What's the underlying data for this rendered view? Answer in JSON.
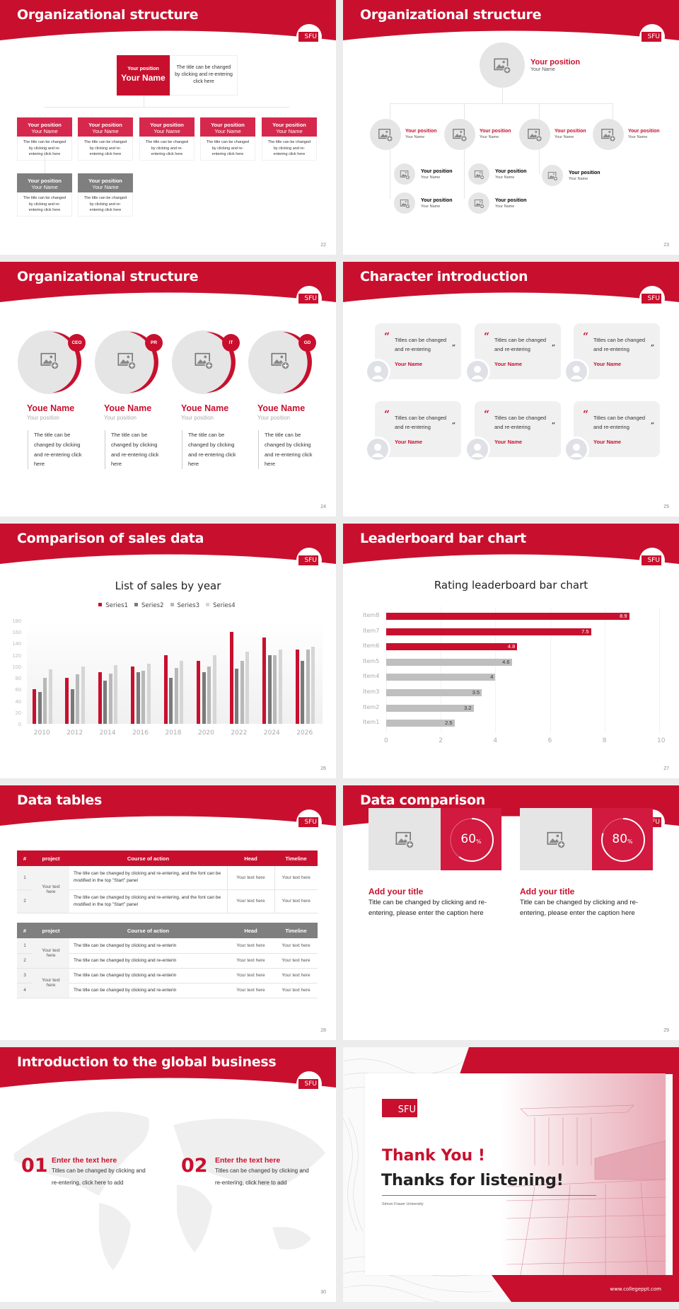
{
  "brand": {
    "logo_text": "SFU",
    "accent": "#c8102e",
    "gray": "#7f7f7f"
  },
  "slides": [
    {
      "number": "22",
      "title": "Organizational structure",
      "top": {
        "position": "Your position",
        "name": "Your Name",
        "description": "The title can be changed by clicking and re-entering click here"
      },
      "boxes": [
        {
          "position": "Your position",
          "name": "Your Name",
          "description": "The title can be changed by clicking and re-entering click here",
          "color": "red"
        },
        {
          "position": "Your position",
          "name": "Your Name",
          "description": "The title can be changed by clicking and re-entering click here",
          "color": "red"
        },
        {
          "position": "Your position",
          "name": "Your Name",
          "description": "The title can be changed by clicking and re-entering click here",
          "color": "red"
        },
        {
          "position": "Your position",
          "name": "Your Name",
          "description": "The title can be changed by clicking and re-entering click here",
          "color": "red"
        },
        {
          "position": "Your position",
          "name": "Your Name",
          "description": "The title can be changed by clicking and re-entering click here",
          "color": "red"
        },
        {
          "position": "Your position",
          "name": "Your Name",
          "description": "The title can be changed by clicking and re-entering click here",
          "color": "gray"
        },
        {
          "position": "Your position",
          "name": "Your Name",
          "description": "The title can be changed by clicking and re-entering click here",
          "color": "gray"
        }
      ]
    },
    {
      "number": "23",
      "title": "Organizational structure",
      "top": {
        "position": "Your position",
        "name": "Your Name"
      },
      "level2": [
        {
          "position": "Your position",
          "name": "Your Name"
        },
        {
          "position": "Your position",
          "name": "Your Name"
        },
        {
          "position": "Your position",
          "name": "Your Name"
        },
        {
          "position": "Your position",
          "name": "Your Name"
        }
      ],
      "level3": [
        {
          "position": "Your position",
          "name": "Your Name"
        },
        {
          "position": "Your position",
          "name": "Your Name"
        },
        {
          "position": "Your position",
          "name": "Your Name"
        },
        {
          "position": "Your position",
          "name": "Your Name"
        },
        {
          "position": "Your position",
          "name": "Your Name"
        }
      ]
    },
    {
      "number": "24",
      "title": "Organizational structure",
      "members": [
        {
          "badge": "CEO",
          "name": "Youe Name",
          "position": "Your position",
          "description": "The title can be changed by clicking and re-entering click here"
        },
        {
          "badge": "PR",
          "name": "Youe Name",
          "position": "Your position",
          "description": "The title can be changed by clicking and re-entering click here"
        },
        {
          "badge": "IT",
          "name": "Youe Name",
          "position": "Your position",
          "description": "The title can be changed by clicking and re-entering click here"
        },
        {
          "badge": "GD",
          "name": "Youe Name",
          "position": "Your position",
          "description": "The title can be changed by clicking and re-entering click here"
        }
      ]
    },
    {
      "number": "25",
      "title": "Character introduction",
      "quotes": [
        {
          "text": "Titles can be changed and re-entering",
          "name": "Your Name"
        },
        {
          "text": "Titles can be changed and re-entering",
          "name": "Your Name"
        },
        {
          "text": "Titles can be changed and re-entering",
          "name": "Your Name"
        },
        {
          "text": "Titles can be changed and re-entering",
          "name": "Your Name"
        },
        {
          "text": "Titles can be changed and re-entering",
          "name": "Your Name"
        },
        {
          "text": "Titles can be changed and re-entering",
          "name": "Your Name"
        }
      ]
    },
    {
      "number": "26",
      "title": "Comparison of sales data"
    },
    {
      "number": "27",
      "title": "Leaderboard bar chart"
    },
    {
      "number": "28",
      "title": "Data tables",
      "table1": {
        "headers": [
          "#",
          "project",
          "Course of action",
          "Head",
          "Timeline"
        ],
        "project": "Your text here",
        "rows": [
          {
            "n": "1",
            "action": "The title can be changed by clicking and re-entering, and the font can be modified in the top \"Start\" panel",
            "head": "Your text here",
            "timeline": "Your text here"
          },
          {
            "n": "2",
            "action": "The title can be changed by clicking and re-entering, and the font can be modified in the top \"Start\" panel",
            "head": "Your text here",
            "timeline": "Your text here"
          }
        ]
      },
      "table2": {
        "headers": [
          "#",
          "project",
          "Course of action",
          "Head",
          "Timeline"
        ],
        "projects": [
          "Your text here",
          "Your text here"
        ],
        "rows": [
          {
            "n": "1",
            "action": "The title can be changed by clicking and re-enterin",
            "head": "Your text here",
            "timeline": "Your text here"
          },
          {
            "n": "2",
            "action": "The title can be changed by clicking and re-enterin",
            "head": "Your text here",
            "timeline": "Your text here"
          },
          {
            "n": "3",
            "action": "The title can be changed by clicking and re-enterin",
            "head": "Your text here",
            "timeline": "Your text here"
          },
          {
            "n": "4",
            "action": "The title can be changed by clicking and re-enterin",
            "head": "Your text here",
            "timeline": "Your text here"
          }
        ]
      }
    },
    {
      "number": "29",
      "title": "Data comparison",
      "items": [
        {
          "percent": "60",
          "unit": "%",
          "title": "Add your title",
          "text": "Title can be changed by clicking and re-entering, please enter the caption here"
        },
        {
          "percent": "80",
          "unit": "%",
          "title": "Add your title",
          "text": "Title can be changed by clicking and re-entering, please enter the caption here"
        }
      ]
    },
    {
      "number": "30",
      "title": "Introduction to the global business",
      "items": [
        {
          "num": "01",
          "title": "Enter the text here",
          "text": "Titles can be changed by clicking and re-entering, click here to add"
        },
        {
          "num": "02",
          "title": "Enter the text here",
          "text": "Titles can be changed by clicking and re-entering, click here to add"
        }
      ]
    },
    {
      "title": "Thank You !",
      "subtitle": "Thanks for listening!",
      "university": "Simon Fraser University",
      "website": "www.collegeppt.com"
    }
  ],
  "chart_data": [
    {
      "type": "bar",
      "title": "List of sales by year",
      "categories": [
        "2010",
        "2012",
        "2014",
        "2016",
        "2018",
        "2020",
        "2022",
        "2024",
        "2026"
      ],
      "series": [
        {
          "name": "Series1",
          "color": "#c8102e",
          "values": [
            60,
            80,
            90,
            100,
            120,
            110,
            160,
            150,
            130
          ]
        },
        {
          "name": "Series2",
          "color": "#7a7a7a",
          "values": [
            55,
            60,
            75,
            90,
            80,
            90,
            96,
            120,
            110
          ]
        },
        {
          "name": "Series3",
          "color": "#b8b8b8",
          "values": [
            80,
            86,
            88,
            92,
            98,
            100,
            110,
            120,
            130
          ]
        },
        {
          "name": "Series4",
          "color": "#d6d6d6",
          "values": [
            95,
            100,
            102,
            105,
            110,
            120,
            126,
            130,
            135
          ]
        }
      ],
      "yticks": [
        "0",
        "20",
        "40",
        "60",
        "80",
        "100",
        "120",
        "140",
        "160",
        "180"
      ],
      "ylim": [
        0,
        180
      ],
      "legend_position": "top",
      "grid": false
    },
    {
      "type": "bar",
      "orientation": "horizontal",
      "title": "Rating leaderboard bar chart",
      "categories": [
        "Item8",
        "Item7",
        "Item6",
        "Item5",
        "Item4",
        "Item3",
        "Item2",
        "Item1"
      ],
      "values": [
        8.9,
        7.5,
        4.8,
        4.6,
        4,
        3.5,
        3.2,
        2.5
      ],
      "labels": [
        "8.9",
        "7.5",
        "4.8",
        "4.6",
        "4",
        "3.5",
        "3.2",
        "2.5"
      ],
      "colors": [
        "#c8102e",
        "#c8102e",
        "#c8102e",
        "#bfbfbf",
        "#bfbfbf",
        "#bfbfbf",
        "#bfbfbf",
        "#bfbfbf"
      ],
      "xticks": [
        "0",
        "2",
        "4",
        "6",
        "8",
        "10"
      ],
      "xlim": [
        0,
        10
      ],
      "grid": true
    }
  ]
}
